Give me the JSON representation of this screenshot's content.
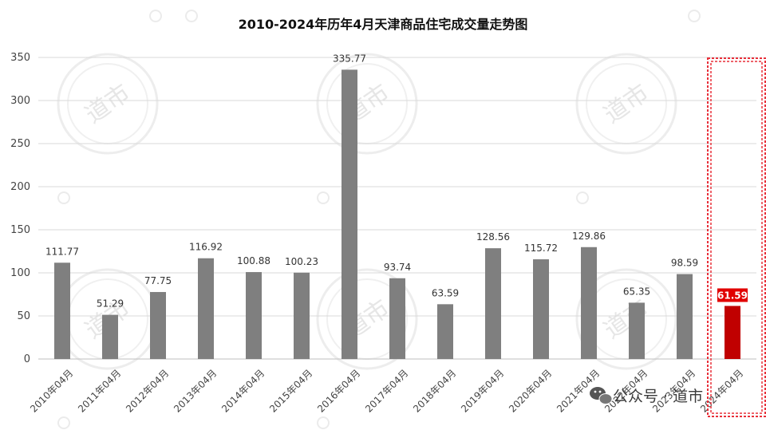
{
  "chart_data": {
    "type": "bar",
    "title": "2010-2024年历年4月天津商品住宅成交量走势图",
    "categories": [
      "2010年04月",
      "2011年04月",
      "2012年04月",
      "2013年04月",
      "2014年04月",
      "2015年04月",
      "2016年04月",
      "2017年04月",
      "2018年04月",
      "2019年04月",
      "2020年04月",
      "2021年04月",
      "2022年04月",
      "2023年04月",
      "2024年04月"
    ],
    "values": [
      111.77,
      51.29,
      77.75,
      116.92,
      100.88,
      100.23,
      335.77,
      93.74,
      63.59,
      128.56,
      115.72,
      129.86,
      65.35,
      98.59,
      61.59
    ],
    "ylim": [
      0,
      350
    ],
    "yticks": [
      0,
      50,
      100,
      150,
      200,
      250,
      300,
      350
    ],
    "xlabel": "",
    "ylabel": "",
    "grid": true,
    "highlight_index": 14,
    "colors": {
      "bar": "#7f7f7f",
      "highlight": "#c00000",
      "highlight_box": "#e8303a",
      "grid": "#d9d9d9"
    }
  },
  "watermark": {
    "text": "道市"
  },
  "credit": {
    "text": "公众号 · 道市",
    "icon": "wechat-icon"
  }
}
